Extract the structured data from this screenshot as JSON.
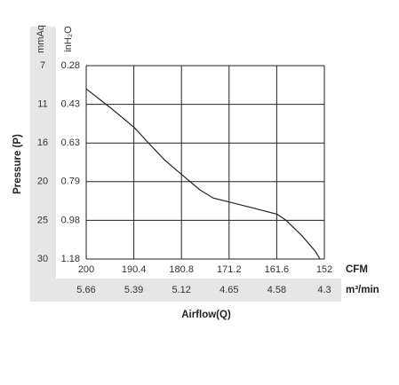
{
  "chart_data": {
    "type": "line",
    "y_label": "Pressure (P)",
    "y_unit": "inH₂O",
    "y2_unit": "mmAq",
    "x_unit": "CFM",
    "x2_unit": "m³/min",
    "x_label": "Airflow(Q)",
    "xlim": [
      200,
      152
    ],
    "xticks": [
      200,
      190.4,
      180.8,
      171.2,
      161.6,
      152
    ],
    "x2ticks": [
      5.66,
      5.39,
      5.12,
      4.65,
      4.58,
      4.3
    ],
    "ylim": [
      0.28,
      1.18
    ],
    "yticks": [
      0.28,
      0.43,
      0.63,
      0.79,
      0.98,
      1.18
    ],
    "y2ticks": [
      7,
      11,
      16,
      20,
      25,
      30
    ],
    "grid": true,
    "color": "#222222",
    "x": [
      200,
      195.0,
      190.3,
      187.8,
      184.2,
      180.8,
      177.1,
      174.4,
      171.2,
      166.3,
      161.5,
      159.7,
      156.5,
      153.8,
      152.9
    ],
    "values": [
      0.37,
      0.45,
      0.55,
      0.62,
      0.7,
      0.76,
      0.83,
      0.87,
      0.89,
      0.92,
      0.95,
      0.98,
      1.06,
      1.14,
      1.18
    ]
  }
}
